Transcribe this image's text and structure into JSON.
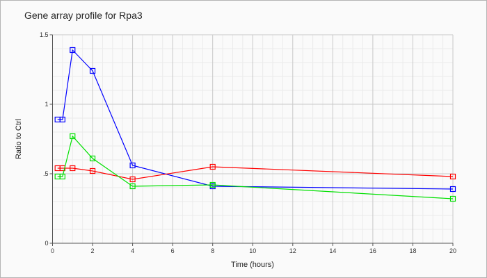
{
  "chart_data": {
    "type": "line",
    "title": "Gene array profile for Rpa3",
    "xlabel": "Time (hours)",
    "ylabel": "Ratio to Ctrl",
    "xlim": [
      0,
      20
    ],
    "ylim": [
      0,
      1.5
    ],
    "xticks": [
      "0",
      "2",
      "4",
      "6",
      "8",
      "10",
      "12",
      "14",
      "16",
      "18",
      "20"
    ],
    "yticks": [
      "0",
      "0.5",
      "1",
      "1.5"
    ],
    "ytick_labels": [
      "0",
      ".5",
      "1",
      "1.5"
    ],
    "grid": true,
    "x": [
      0.25,
      0.5,
      1,
      2,
      4,
      8,
      20
    ],
    "series": [
      {
        "name": "blue",
        "color": "#0000ff",
        "values": [
          0.89,
          0.89,
          1.39,
          1.24,
          0.56,
          0.41,
          0.39
        ]
      },
      {
        "name": "red",
        "color": "#ff0000",
        "values": [
          0.54,
          0.54,
          0.54,
          0.52,
          0.46,
          0.55,
          0.48
        ]
      },
      {
        "name": "green",
        "color": "#00e000",
        "values": [
          0.48,
          0.48,
          0.77,
          0.61,
          0.41,
          0.42,
          0.32
        ]
      }
    ]
  }
}
